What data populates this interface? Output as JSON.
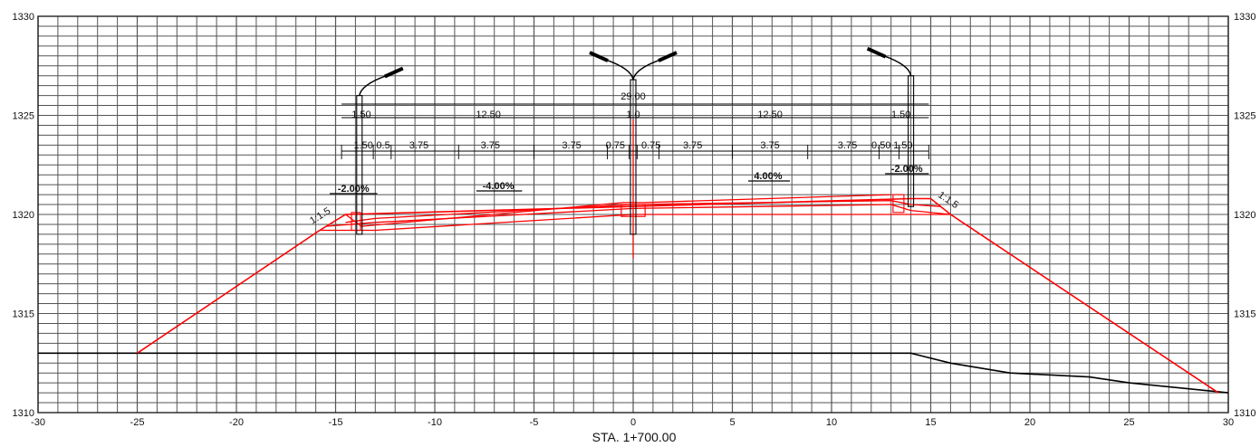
{
  "station_label": "STA. 1+700.00",
  "axes": {
    "x_range": [
      -30,
      30
    ],
    "y_range": [
      1310,
      1330
    ],
    "x_ticks": [
      "-30",
      "-25",
      "-20",
      "-15",
      "-10",
      "-5",
      "0",
      "5",
      "10",
      "15",
      "20",
      "25",
      "30"
    ],
    "y_ticks": [
      "1310",
      "1315",
      "1320",
      "1325",
      "1330"
    ],
    "grid": true,
    "grid_step_x": 1,
    "grid_step_y": 1
  },
  "colors": {
    "grid": "#555555",
    "design": "#ff0000",
    "ground": "#000000",
    "annotation": "#000000"
  },
  "total_width_label": "29.00",
  "top_dims": [
    "1.50",
    "12.50",
    "1.0",
    "12.50",
    "1.50"
  ],
  "lane_dims": [
    "1.50",
    "0.5",
    "3.75",
    "3.75",
    "3.75",
    "0.75",
    "0.75",
    "3.75",
    "3.75",
    "3.75",
    "0.50",
    "1.50"
  ],
  "slopes": {
    "left_shoulder": "-2.00%",
    "left_lanes": "-4.00%",
    "right_lanes": "4.00%",
    "right_shoulder": "-2.00%",
    "left_embankment": "1:1.5",
    "right_embankment": "1:1.5"
  },
  "ground_line": [
    [
      -30,
      1313
    ],
    [
      -25,
      1313
    ],
    [
      14,
      1313
    ],
    [
      16,
      1312.5
    ],
    [
      19,
      1312
    ],
    [
      23,
      1311.8
    ],
    [
      25,
      1311.5
    ],
    [
      30,
      1311
    ]
  ],
  "design_outline": [
    [
      -25,
      1313
    ],
    [
      -15.8,
      1319.2
    ],
    [
      -14.5,
      1320
    ],
    [
      14,
      1320.8
    ],
    [
      15,
      1320.8
    ],
    [
      16,
      1320
    ],
    [
      29.5,
      1311
    ]
  ],
  "pavement_layers": [
    [
      [
        -14.5,
        1320
      ],
      [
        -13.7,
        1319.4
      ],
      [
        -0.5,
        1320.6
      ],
      [
        0.5,
        1320.6
      ],
      [
        13,
        1321
      ]
    ],
    [
      [
        -14.5,
        1319.6
      ],
      [
        -13,
        1319.8
      ],
      [
        0,
        1320.5
      ],
      [
        13,
        1320.7
      ],
      [
        14,
        1320.5
      ],
      [
        15.5,
        1320.4
      ]
    ],
    [
      [
        -15.5,
        1319.4
      ],
      [
        -13,
        1319.6
      ],
      [
        0,
        1320.3
      ],
      [
        13,
        1320.5
      ],
      [
        14,
        1320.2
      ],
      [
        16,
        1320
      ]
    ],
    [
      [
        -15.8,
        1319.2
      ],
      [
        -13,
        1319.2
      ],
      [
        0,
        1320
      ],
      [
        13,
        1320
      ],
      [
        14,
        1320
      ],
      [
        16,
        1320
      ]
    ]
  ],
  "lamp_posts": [
    {
      "x": -13.8,
      "base": 1319,
      "top": 1326,
      "arms": "right"
    },
    {
      "x": 0,
      "base": 1319,
      "top": 1326.8,
      "arms": "both"
    },
    {
      "x": 14,
      "base": 1320.4,
      "top": 1327,
      "arms": "left"
    }
  ]
}
